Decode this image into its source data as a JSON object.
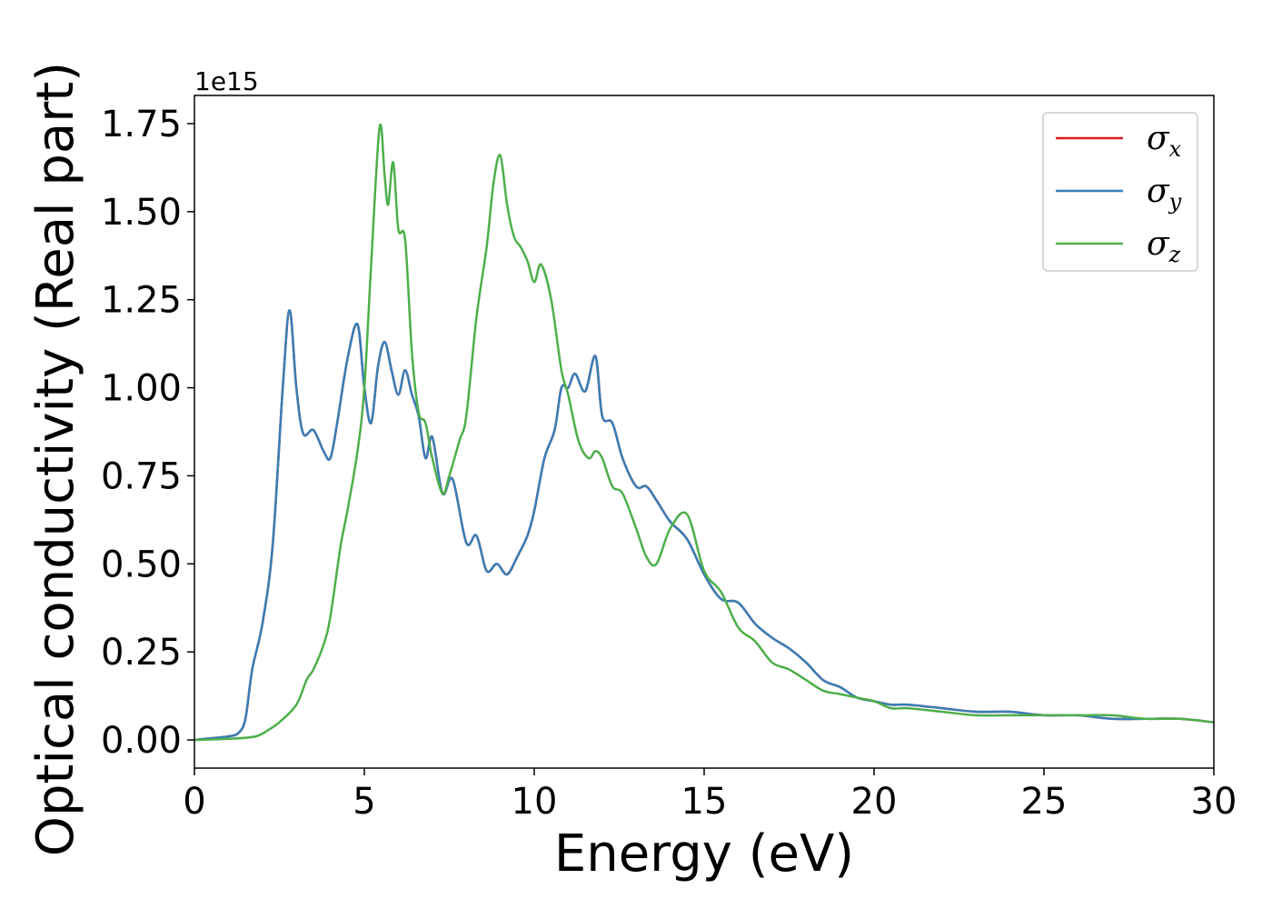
{
  "chart_data": {
    "type": "line",
    "xlabel": "Energy (eV)",
    "ylabel": "Optical conductivity (Real part)",
    "y_offset_label": "1e15",
    "xlim": [
      0,
      30
    ],
    "ylim": [
      -0.08,
      1.83
    ],
    "x_ticks": [
      0,
      5,
      10,
      15,
      20,
      25,
      30
    ],
    "y_ticks": [
      0.0,
      0.25,
      0.5,
      0.75,
      1.0,
      1.25,
      1.5,
      1.75
    ],
    "x_tick_labels": [
      "0",
      "5",
      "10",
      "15",
      "20",
      "25",
      "30"
    ],
    "y_tick_labels": [
      "0.00",
      "0.25",
      "0.50",
      "0.75",
      "1.00",
      "1.25",
      "1.50",
      "1.75"
    ],
    "grid": false,
    "legend_position": "top-right",
    "series": [
      {
        "name": "σx",
        "symbol": "σ",
        "subscript": "x",
        "color": "#e41a1c",
        "x": [
          0,
          0.5,
          1.0,
          1.3,
          1.5,
          1.7,
          2.0,
          2.3,
          2.6,
          2.8,
          3.0,
          3.2,
          3.5,
          3.8,
          4.0,
          4.2,
          4.5,
          4.8,
          5.0,
          5.2,
          5.4,
          5.6,
          5.8,
          6.0,
          6.2,
          6.4,
          6.6,
          6.8,
          7.0,
          7.3,
          7.6,
          8.0,
          8.3,
          8.6,
          8.9,
          9.2,
          9.5,
          9.8,
          10.0,
          10.3,
          10.6,
          10.8,
          11.0,
          11.2,
          11.5,
          11.8,
          12.0,
          12.3,
          12.6,
          13.0,
          13.3,
          13.6,
          14.0,
          14.5,
          15.0,
          15.5,
          16.0,
          16.5,
          17.0,
          17.5,
          18.0,
          18.5,
          19.0,
          19.5,
          20.0,
          20.5,
          21.0,
          22.0,
          23.0,
          24.0,
          25.0,
          26.0,
          27.0,
          28.0,
          29.0,
          30.0
        ],
        "values": [
          0.0,
          0.005,
          0.01,
          0.02,
          0.06,
          0.2,
          0.33,
          0.55,
          1.0,
          1.22,
          1.0,
          0.87,
          0.88,
          0.82,
          0.8,
          0.9,
          1.08,
          1.18,
          1.0,
          0.9,
          1.06,
          1.13,
          1.05,
          0.98,
          1.05,
          0.98,
          0.92,
          0.8,
          0.86,
          0.7,
          0.74,
          0.56,
          0.58,
          0.48,
          0.5,
          0.47,
          0.52,
          0.58,
          0.65,
          0.8,
          0.88,
          1.0,
          1.0,
          1.04,
          0.99,
          1.09,
          0.92,
          0.9,
          0.8,
          0.72,
          0.72,
          0.68,
          0.62,
          0.57,
          0.47,
          0.4,
          0.39,
          0.33,
          0.29,
          0.26,
          0.22,
          0.17,
          0.15,
          0.12,
          0.11,
          0.1,
          0.1,
          0.09,
          0.08,
          0.08,
          0.07,
          0.07,
          0.06,
          0.06,
          0.06,
          0.05
        ]
      },
      {
        "name": "σy",
        "symbol": "σ",
        "subscript": "y",
        "color": "#377eb8",
        "x": [
          0,
          0.5,
          1.0,
          1.3,
          1.5,
          1.7,
          2.0,
          2.3,
          2.6,
          2.8,
          3.0,
          3.2,
          3.5,
          3.8,
          4.0,
          4.2,
          4.5,
          4.8,
          5.0,
          5.2,
          5.4,
          5.6,
          5.8,
          6.0,
          6.2,
          6.4,
          6.6,
          6.8,
          7.0,
          7.3,
          7.6,
          8.0,
          8.3,
          8.6,
          8.9,
          9.2,
          9.5,
          9.8,
          10.0,
          10.3,
          10.6,
          10.8,
          11.0,
          11.2,
          11.5,
          11.8,
          12.0,
          12.3,
          12.6,
          13.0,
          13.3,
          13.6,
          14.0,
          14.5,
          15.0,
          15.5,
          16.0,
          16.5,
          17.0,
          17.5,
          18.0,
          18.5,
          19.0,
          19.5,
          20.0,
          20.5,
          21.0,
          22.0,
          23.0,
          24.0,
          25.0,
          26.0,
          27.0,
          28.0,
          29.0,
          30.0
        ],
        "values": [
          0.0,
          0.005,
          0.01,
          0.02,
          0.06,
          0.2,
          0.33,
          0.55,
          1.0,
          1.22,
          1.0,
          0.87,
          0.88,
          0.82,
          0.8,
          0.9,
          1.08,
          1.18,
          1.0,
          0.9,
          1.06,
          1.13,
          1.05,
          0.98,
          1.05,
          0.98,
          0.92,
          0.8,
          0.86,
          0.7,
          0.74,
          0.56,
          0.58,
          0.48,
          0.5,
          0.47,
          0.52,
          0.58,
          0.65,
          0.8,
          0.88,
          1.0,
          1.0,
          1.04,
          0.99,
          1.09,
          0.92,
          0.9,
          0.8,
          0.72,
          0.72,
          0.68,
          0.62,
          0.57,
          0.47,
          0.4,
          0.39,
          0.33,
          0.29,
          0.26,
          0.22,
          0.17,
          0.15,
          0.12,
          0.11,
          0.1,
          0.1,
          0.09,
          0.08,
          0.08,
          0.07,
          0.07,
          0.06,
          0.06,
          0.06,
          0.05
        ]
      },
      {
        "name": "σz",
        "symbol": "σ",
        "subscript": "z",
        "color": "#4daf4a",
        "x": [
          0,
          1.0,
          1.8,
          2.2,
          2.5,
          3.0,
          3.3,
          3.5,
          3.8,
          4.0,
          4.3,
          4.5,
          4.8,
          5.0,
          5.2,
          5.45,
          5.6,
          5.7,
          5.85,
          6.0,
          6.2,
          6.4,
          6.6,
          6.8,
          7.0,
          7.3,
          7.5,
          7.8,
          8.0,
          8.3,
          8.6,
          8.8,
          9.0,
          9.2,
          9.4,
          9.6,
          9.8,
          10.0,
          10.2,
          10.5,
          10.8,
          11.0,
          11.3,
          11.6,
          11.8,
          12.0,
          12.3,
          12.6,
          13.0,
          13.3,
          13.6,
          14.0,
          14.5,
          15.0,
          15.5,
          16.0,
          16.5,
          17.0,
          17.5,
          18.0,
          18.5,
          19.0,
          19.5,
          20.0,
          20.5,
          21.0,
          22.0,
          23.0,
          24.0,
          25.0,
          26.0,
          27.0,
          28.0,
          29.0,
          30.0
        ],
        "values": [
          0.0,
          0.003,
          0.01,
          0.03,
          0.05,
          0.1,
          0.17,
          0.2,
          0.27,
          0.35,
          0.55,
          0.65,
          0.82,
          1.0,
          1.35,
          1.74,
          1.6,
          1.52,
          1.64,
          1.45,
          1.42,
          1.1,
          0.93,
          0.9,
          0.8,
          0.7,
          0.75,
          0.85,
          0.92,
          1.2,
          1.4,
          1.58,
          1.66,
          1.52,
          1.43,
          1.4,
          1.36,
          1.3,
          1.35,
          1.25,
          1.05,
          0.98,
          0.85,
          0.8,
          0.82,
          0.8,
          0.72,
          0.7,
          0.6,
          0.52,
          0.5,
          0.6,
          0.64,
          0.48,
          0.42,
          0.32,
          0.28,
          0.22,
          0.2,
          0.17,
          0.14,
          0.13,
          0.12,
          0.11,
          0.09,
          0.09,
          0.08,
          0.07,
          0.07,
          0.07,
          0.07,
          0.07,
          0.06,
          0.06,
          0.05
        ]
      }
    ]
  }
}
